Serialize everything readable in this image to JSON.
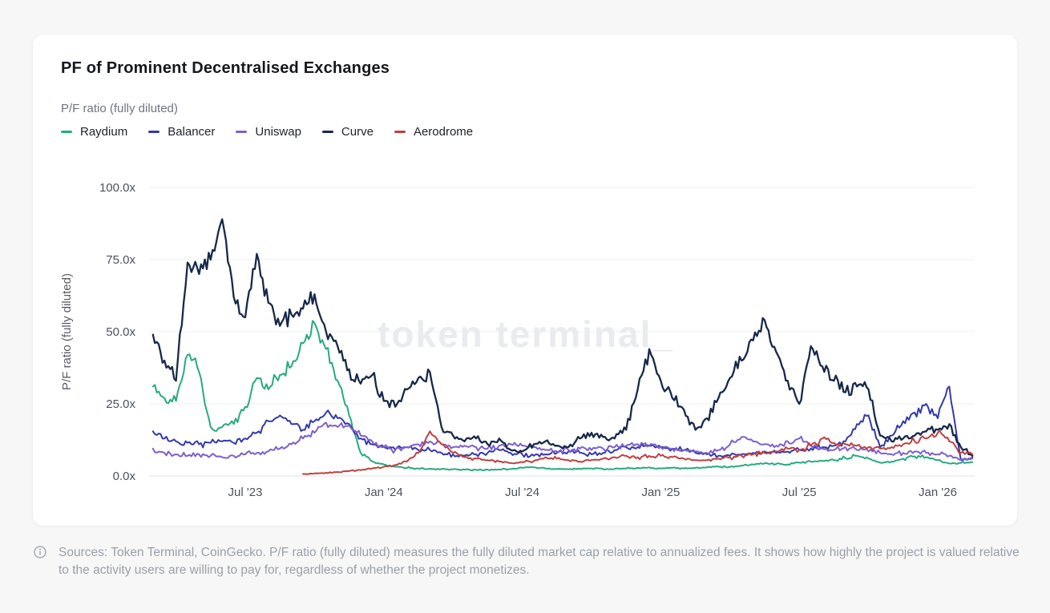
{
  "header": {
    "title": "PF of Prominent Decentralised Exchanges",
    "subtitle": "P/F ratio (fully diluted)"
  },
  "chart_data": {
    "type": "line",
    "title": "PF of Prominent Decentralised Exchanges",
    "ylabel": "P/F ratio (fully diluted)",
    "ylim": [
      0,
      100
    ],
    "grid": "horizontal-light",
    "legend_position": "top",
    "watermark": "token terminal_",
    "y_ticks": [
      {
        "value": 100,
        "label": "100.0x"
      },
      {
        "value": 75,
        "label": "75.0x"
      },
      {
        "value": 50,
        "label": "50.0x"
      },
      {
        "value": 25,
        "label": "25.0x"
      },
      {
        "value": 0,
        "label": "0.0x"
      }
    ],
    "x_start": "2023-03",
    "x_end": "2026-02",
    "samples_per_month": 2,
    "x_ticks": [
      {
        "label": "Jul '23",
        "month_offset": 4
      },
      {
        "label": "Jan '24",
        "month_offset": 10
      },
      {
        "label": "Jul '24",
        "month_offset": 16
      },
      {
        "label": "Jan '25",
        "month_offset": 22
      },
      {
        "label": "Jul '25",
        "month_offset": 28
      },
      {
        "label": "Jan '26",
        "month_offset": 34
      }
    ],
    "series": [
      {
        "name": "Raydium",
        "color": "#27aa80",
        "start_offset_months": 0,
        "values": [
          31,
          27,
          26,
          42,
          36,
          17,
          17,
          18,
          24,
          34,
          30,
          35,
          38,
          46,
          53,
          44,
          33,
          21,
          8,
          5,
          4,
          3.2,
          2.8,
          2.6,
          2.5,
          2.4,
          2.3,
          2.2,
          2.1,
          2.2,
          2.3,
          2.4,
          2.8,
          3,
          2.6,
          2.4,
          2.3,
          2.5,
          2.6,
          2.4,
          2.5,
          2.6,
          2.8,
          3,
          2.6,
          2.8,
          2.6,
          2.8,
          3,
          3.2,
          3.2,
          3.6,
          4,
          4.4,
          4.2,
          4,
          4.6,
          5,
          5.2,
          5.5,
          6.2,
          7,
          6,
          4.6,
          5,
          6,
          6.8,
          6.5,
          5.5,
          4.3,
          4.5,
          4.8
        ]
      },
      {
        "name": "Balancer",
        "color": "#3439ac",
        "start_offset_months": 0,
        "values": [
          15.5,
          13,
          12,
          11.5,
          11,
          11.5,
          12,
          11.5,
          13,
          15,
          19,
          21,
          18,
          16,
          19,
          22,
          20,
          18,
          13,
          11,
          10,
          9,
          10,
          9,
          9,
          8,
          7.5,
          7,
          7.5,
          8,
          9,
          8,
          7.5,
          7,
          7.5,
          8,
          8.5,
          8,
          7.5,
          8,
          9,
          10,
          10,
          10.5,
          10,
          9.5,
          9,
          8,
          7.5,
          7,
          7,
          7.5,
          8,
          8.5,
          8,
          8.5,
          9,
          9.5,
          10,
          10.5,
          12,
          18,
          21,
          10,
          14,
          19,
          22,
          25,
          20,
          31,
          5.5,
          6.5
        ]
      },
      {
        "name": "Uniswap",
        "color": "#7d5fd0",
        "start_offset_months": 0,
        "values": [
          9.5,
          8,
          7.5,
          7,
          7.5,
          7,
          6.5,
          7,
          7.5,
          8,
          8.5,
          9.5,
          11,
          13,
          15,
          18.5,
          17,
          17.5,
          14,
          12,
          10,
          9,
          10,
          11,
          12,
          11,
          10,
          10.5,
          10,
          9.5,
          10.5,
          11,
          10.5,
          10,
          9,
          8.5,
          9,
          9.5,
          9,
          9.5,
          10,
          10.5,
          11,
          10.5,
          10,
          9.5,
          9,
          8.5,
          8,
          9,
          11,
          13.5,
          12,
          11,
          10.5,
          12,
          13,
          10.5,
          9.5,
          9,
          10,
          9,
          8.5,
          8,
          7.5,
          8,
          8.5,
          8,
          7.5,
          7,
          5.5,
          6
        ]
      },
      {
        "name": "Curve",
        "color": "#17294a",
        "start_offset_months": 0,
        "values": [
          49,
          40,
          33,
          74,
          70,
          75,
          89,
          62,
          55,
          77,
          60,
          52,
          56,
          58,
          63,
          50,
          45,
          37,
          32,
          35,
          26,
          24,
          30,
          34,
          36,
          17,
          14,
          12,
          13,
          11,
          13,
          9,
          8.5,
          11,
          12,
          10.5,
          10,
          13,
          15,
          13.5,
          13,
          16,
          30,
          44,
          33,
          27,
          23,
          16,
          20,
          27,
          34,
          40,
          47,
          54,
          43,
          33,
          25,
          45,
          38,
          33,
          29,
          31,
          30,
          14,
          12,
          13,
          14,
          15.5,
          16,
          18,
          10,
          7
        ]
      },
      {
        "name": "Aerodrome",
        "color": "#bf4040",
        "start_offset_months": 6.5,
        "values": [
          0.7,
          0.9,
          1.1,
          1.4,
          1.7,
          2,
          2.6,
          3.2,
          3.8,
          5,
          8,
          15.5,
          11,
          8,
          6.5,
          6,
          5.5,
          5,
          4.5,
          4.8,
          5.2,
          6.5,
          6,
          5.5,
          5,
          5.5,
          6,
          6.5,
          7,
          6.5,
          7,
          7,
          6.5,
          6,
          5.5,
          5.5,
          6,
          6.5,
          7,
          7.5,
          8,
          8.5,
          9.5,
          9,
          10.5,
          13,
          11.5,
          11,
          10.5,
          10,
          9.5,
          10,
          11,
          12,
          13,
          15,
          12,
          8,
          7.5
        ]
      }
    ]
  },
  "colors": {
    "page_bg": "#f7f7f8",
    "card_bg": "#ffffff",
    "grid_line": "#eef0f2",
    "axis_baseline": "#dfe2e6",
    "tick_text": "#4b525c",
    "axis_title_text": "#565d67",
    "watermark_text": "#e9ebee",
    "title_text": "#15181e",
    "subtitle_text": "#6e7580",
    "footer_text": "#9aa0a7"
  },
  "footer": {
    "icon": "info-circle",
    "text": "Sources: Token Terminal, CoinGecko. P/F ratio (fully diluted) measures the fully diluted market cap relative to annualized fees. It shows how highly the project is valued relative to the activity users are willing to pay for, regardless of whether the project monetizes."
  }
}
